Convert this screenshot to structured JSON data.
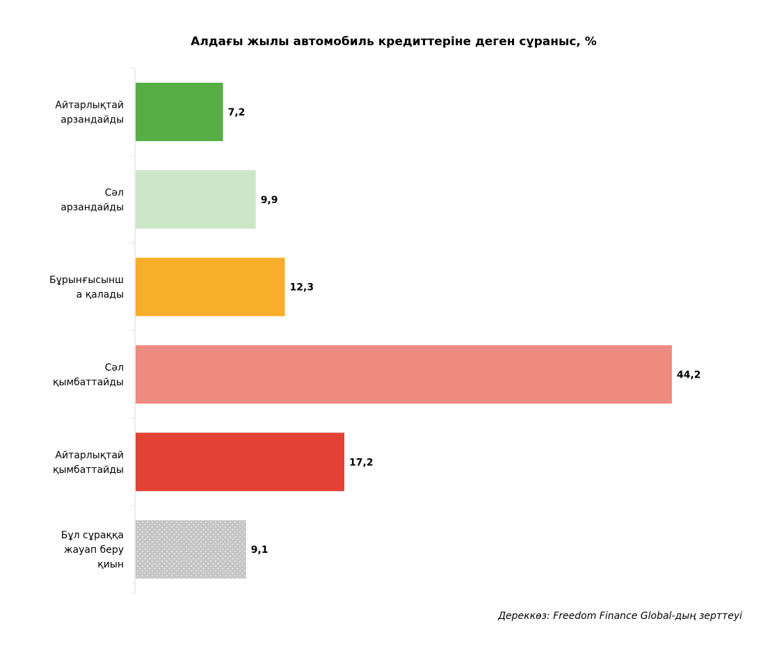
{
  "chart_data": {
    "type": "bar",
    "orientation": "horizontal",
    "title": "Алдағы жылы автомобиль кредиттеріне деген сұраныс, %",
    "categories": [
      "Айтарлықтай арзандайды",
      "Сәл арзандайды",
      "Бұрынғысынша қалады",
      "Сәл қымбаттайды",
      "Айтарлықтай қымбаттайды",
      "Бұл сұраққа жауап беру қиын"
    ],
    "category_lines": [
      [
        "Айтарлықтай",
        "арзандайды"
      ],
      [
        "Сәл",
        "арзандайды"
      ],
      [
        "Бұрынғысынш",
        "а қалады"
      ],
      [
        "Сәл",
        "қымбаттайды"
      ],
      [
        "Айтарлықтай",
        "қымбаттайды"
      ],
      [
        "Бұл сұраққа",
        "жауап беру",
        "қиын"
      ]
    ],
    "values": [
      7.2,
      9.9,
      12.3,
      44.2,
      17.2,
      9.1
    ],
    "value_labels": [
      "7,2",
      "9,9",
      "12,3",
      "44,2",
      "17,2",
      "9,1"
    ],
    "colors": [
      "#56AE45",
      "#CCE7C8",
      "#F7AE2A",
      "#EE8B80",
      "#E34133",
      "#C8C8C8"
    ],
    "patterns": [
      "solid",
      "solid",
      "solid",
      "solid",
      "solid",
      "dotted"
    ],
    "xlim": [
      0,
      44.2
    ],
    "grid": false,
    "legend": "none"
  },
  "source": "Дереккөз: Freedom Finance Global-дың зерттеуі"
}
